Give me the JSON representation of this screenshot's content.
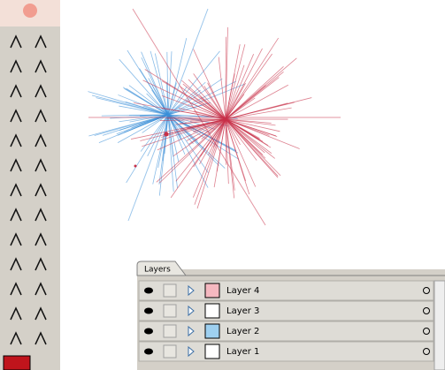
{
  "panel": {
    "tab": "Layers",
    "layers": [
      {
        "name": "Layer 4"
      },
      {
        "name": "Layer 3"
      },
      {
        "name": "Layer 2"
      },
      {
        "name": "Layer 1"
      }
    ]
  }
}
